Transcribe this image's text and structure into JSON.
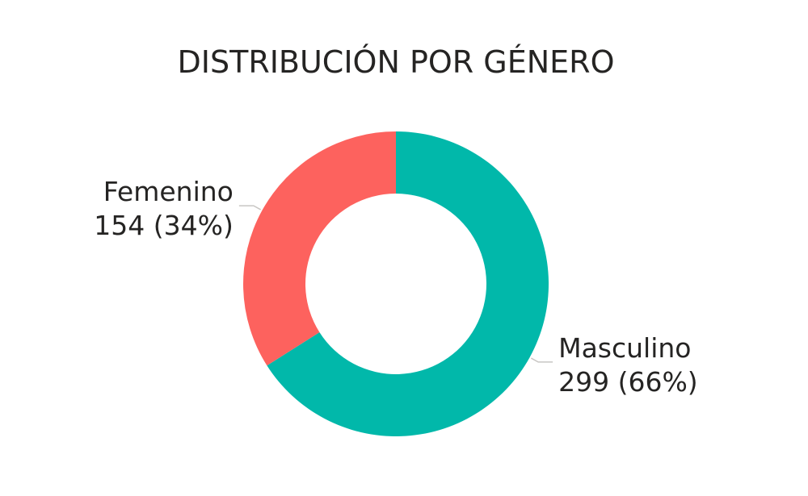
{
  "chart_data": {
    "type": "pie",
    "title": "DISTRIBUCIÓN POR GÉNERO",
    "donut": true,
    "categories": [
      "Masculino",
      "Femenino"
    ],
    "values": [
      299,
      154
    ],
    "percent_labels": [
      "66%",
      "34%"
    ],
    "value_labels": [
      "299 (66%)",
      "154 (34%)"
    ],
    "colors": [
      "#01b8aa",
      "#fd625e"
    ],
    "start_angle_deg": 0,
    "direction": "clockwise",
    "legend": "none"
  }
}
